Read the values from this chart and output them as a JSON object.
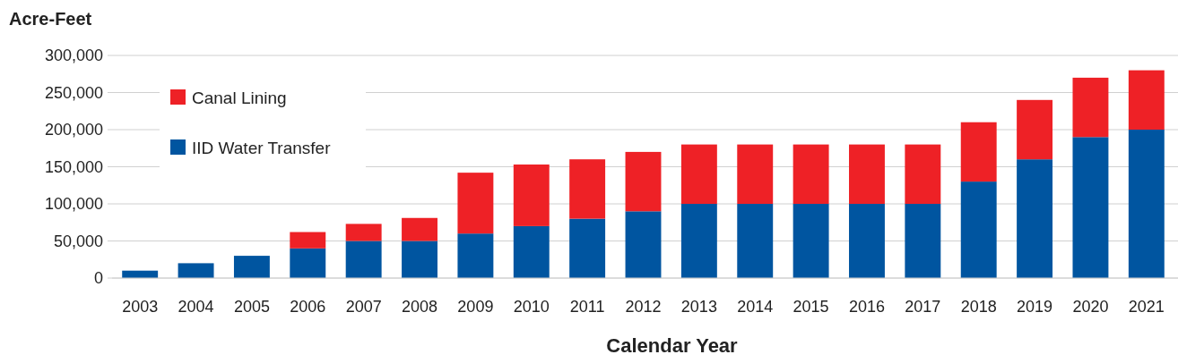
{
  "chart_data": {
    "type": "bar",
    "stacked": true,
    "ylabel": "Acre-Feet",
    "xlabel": "Calendar Year",
    "categories": [
      "2003",
      "2004",
      "2005",
      "2006",
      "2007",
      "2008",
      "2009",
      "2010",
      "2011",
      "2012",
      "2013",
      "2014",
      "2015",
      "2016",
      "2017",
      "2018",
      "2019",
      "2020",
      "2021"
    ],
    "series": [
      {
        "name": "IID Water Transfer",
        "color": "#0055a0",
        "values": [
          10000,
          20000,
          30000,
          40000,
          50000,
          50000,
          60000,
          70000,
          80000,
          90000,
          100000,
          100000,
          100000,
          100000,
          100000,
          130000,
          160000,
          190000,
          200000
        ]
      },
      {
        "name": "Canal Lining",
        "color": "#ee2126",
        "values": [
          0,
          0,
          0,
          22000,
          23000,
          31000,
          82000,
          83000,
          80000,
          80000,
          80000,
          80000,
          80000,
          80000,
          80000,
          80000,
          80000,
          80000,
          80000
        ]
      }
    ],
    "ylim": [
      0,
      300000
    ],
    "yticks": [
      0,
      {
        "value": 50000,
        "label": "50,000"
      },
      {
        "value": 100000,
        "label": "100,000"
      },
      {
        "value": 150000,
        "label": "150,000"
      },
      {
        "value": 200000,
        "label": "200,000"
      },
      {
        "value": 250000,
        "label": "250,000"
      },
      {
        "value": 300000,
        "label": "300,000"
      }
    ],
    "grid": "y",
    "legend": "top left"
  }
}
